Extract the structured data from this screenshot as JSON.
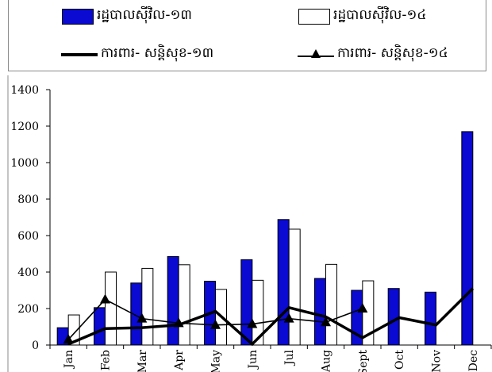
{
  "chart_data": {
    "type": "bar",
    "categories": [
      "Jan",
      "Feb",
      "Mar",
      "Apr",
      "May",
      "Jun",
      "Jul",
      "Aug",
      "Sept",
      "Oct",
      "Nov",
      "Dec"
    ],
    "ylim": [
      0,
      1400
    ],
    "yticks": [
      0,
      200,
      400,
      600,
      800,
      1000,
      1200,
      1400
    ],
    "series": [
      {
        "name": "រដ្ឋបាលស៊ីវិល-១៣",
        "kind": "bar",
        "color": "#0a0ad2",
        "values": [
          95,
          205,
          340,
          485,
          350,
          468,
          688,
          365,
          300,
          310,
          290,
          1170
        ]
      },
      {
        "name": "រដ្ឋបាលស៊ីវិល-១៤",
        "kind": "bar",
        "color": "#ffffff",
        "values": [
          165,
          400,
          420,
          440,
          305,
          355,
          635,
          442,
          352,
          null,
          null,
          null
        ]
      },
      {
        "name": "ការពារ- សន្តិសុខ-១៣",
        "kind": "line",
        "color": "#000000",
        "values": [
          5,
          90,
          95,
          110,
          185,
          5,
          205,
          155,
          40,
          150,
          110,
          310
        ]
      },
      {
        "name": "ការពារ- សន្តិសុខ-១៤",
        "kind": "line-marker",
        "color": "#000000",
        "values": [
          30,
          250,
          145,
          120,
          110,
          115,
          145,
          125,
          200,
          null,
          null,
          null
        ]
      }
    ],
    "legend_position": "top",
    "grid": false
  }
}
